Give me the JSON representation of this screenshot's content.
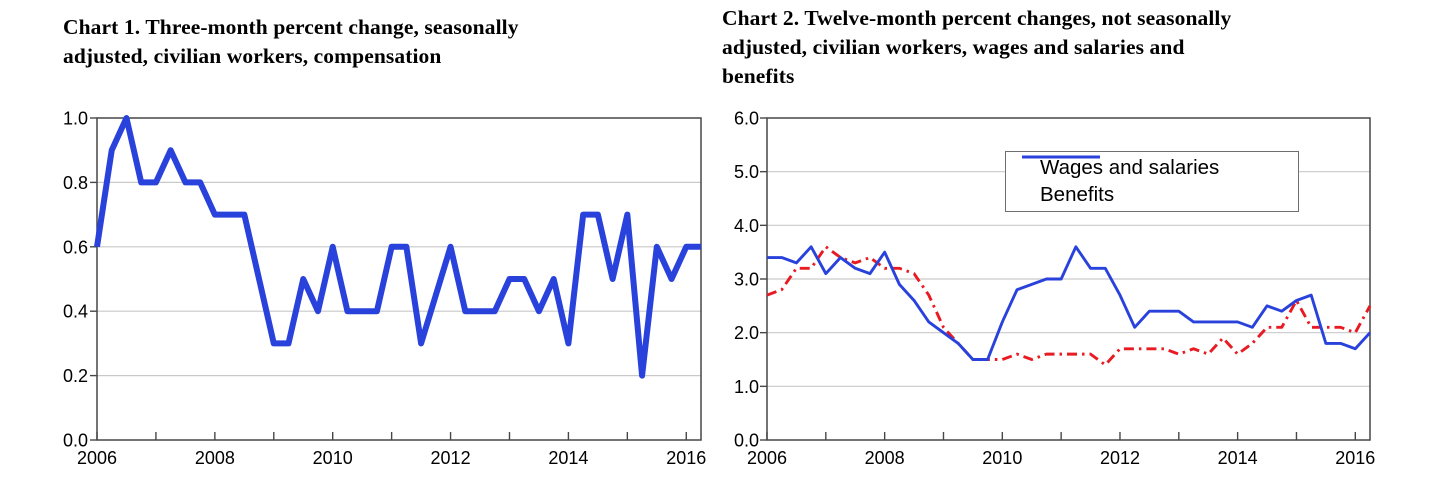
{
  "colors": {
    "line_blue": "#2942dc",
    "line_red": "#e81b22",
    "gridline": "#c9c9c9",
    "axis": "#474747",
    "text": "#000000",
    "legend_border": "#6e6e6e",
    "background": "#ffffff"
  },
  "chart_data": [
    {
      "type": "line",
      "title": "Chart 1. Three-month percent change, seasonally adjusted, civilian workers, compensation",
      "title_lines": [
        "Chart 1. Three-month percent change, seasonally",
        "adjusted, civilian workers, compensation"
      ],
      "xlabel": "",
      "ylabel": "",
      "frequency": "quarterly",
      "x_range": "2006 Q1 to 2016 Q2",
      "n_points": 42,
      "ylim": [
        0.0,
        1.0
      ],
      "grid": "horizontal",
      "legend_position": "none",
      "xtick_labels": [
        "2006",
        "2008",
        "2010",
        "2012",
        "2014",
        "2016"
      ],
      "xtick_positions": [
        0,
        8,
        16,
        24,
        32,
        40
      ],
      "x_minor_tick_positions": [
        4,
        12,
        20,
        28,
        36
      ],
      "ytick_labels": [
        "0.0",
        "0.2",
        "0.4",
        "0.6",
        "0.8",
        "1.0"
      ],
      "ytick_values": [
        0.0,
        0.2,
        0.4,
        0.6,
        0.8,
        1.0
      ],
      "series": [
        {
          "name": "Compensation",
          "color": "#2942dc",
          "line_style": "solid",
          "values": [
            0.6,
            0.9,
            1.0,
            0.8,
            0.8,
            0.9,
            0.8,
            0.8,
            0.7,
            0.7,
            0.7,
            0.5,
            0.3,
            0.3,
            0.5,
            0.4,
            0.6,
            0.4,
            0.4,
            0.4,
            0.6,
            0.6,
            0.3,
            0.45,
            0.6,
            0.4,
            0.4,
            0.4,
            0.5,
            0.5,
            0.4,
            0.5,
            0.3,
            0.7,
            0.7,
            0.5,
            0.7,
            0.2,
            0.6,
            0.5,
            0.6,
            0.6
          ]
        }
      ]
    },
    {
      "type": "line",
      "title": "Chart 2. Twelve-month percent changes, not seasonally adjusted, civilian workers, wages and salaries and benefits",
      "title_lines": [
        "Chart 2. Twelve-month percent changes, not seasonally",
        "adjusted, civilian workers, wages and salaries and",
        "benefits"
      ],
      "xlabel": "",
      "ylabel": "",
      "frequency": "quarterly",
      "x_range": "2006 Q1 to 2016 Q2",
      "n_points": 42,
      "ylim": [
        0.0,
        6.0
      ],
      "grid": "horizontal",
      "legend_position": "upper-center-right",
      "xtick_labels": [
        "2006",
        "2008",
        "2010",
        "2012",
        "2014",
        "2016"
      ],
      "xtick_positions": [
        0,
        8,
        16,
        24,
        32,
        40
      ],
      "x_minor_tick_positions": [
        4,
        12,
        20,
        28,
        36
      ],
      "ytick_labels": [
        "0.0",
        "1.0",
        "2.0",
        "3.0",
        "4.0",
        "5.0",
        "6.0"
      ],
      "ytick_values": [
        0.0,
        1.0,
        2.0,
        3.0,
        4.0,
        5.0,
        6.0
      ],
      "series": [
        {
          "name": "Wages and salaries",
          "color": "#e81b22",
          "line_style": "dash-dot",
          "values": [
            2.7,
            2.8,
            3.2,
            3.2,
            3.6,
            3.4,
            3.3,
            3.4,
            3.2,
            3.2,
            3.1,
            2.7,
            2.1,
            1.8,
            1.5,
            1.5,
            1.5,
            1.6,
            1.5,
            1.6,
            1.6,
            1.6,
            1.6,
            1.4,
            1.7,
            1.7,
            1.7,
            1.7,
            1.6,
            1.7,
            1.6,
            1.9,
            1.6,
            1.8,
            2.1,
            2.1,
            2.6,
            2.1,
            2.1,
            2.1,
            2.0,
            2.5
          ]
        },
        {
          "name": "Benefits",
          "color": "#2942dc",
          "line_style": "solid",
          "values": [
            3.4,
            3.4,
            3.3,
            3.6,
            3.1,
            3.4,
            3.2,
            3.1,
            3.5,
            2.9,
            2.6,
            2.2,
            2.0,
            1.8,
            1.5,
            1.5,
            2.2,
            2.8,
            2.9,
            3.0,
            3.0,
            3.6,
            3.2,
            3.2,
            2.7,
            2.1,
            2.4,
            2.4,
            2.4,
            2.2,
            2.2,
            2.2,
            2.2,
            2.1,
            2.5,
            2.4,
            2.6,
            2.7,
            1.8,
            1.8,
            1.7,
            2.0
          ]
        }
      ]
    }
  ]
}
